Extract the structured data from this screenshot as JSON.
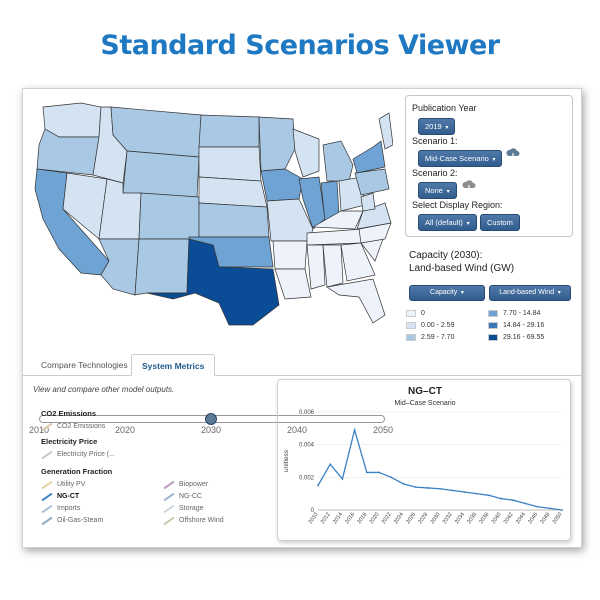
{
  "app": {
    "title": "Standard Scenarios Viewer"
  },
  "timeline": {
    "ticks": [
      "2010",
      "2020",
      "2030",
      "2040",
      "2050"
    ],
    "selected_year": 2030
  },
  "controls": {
    "publication_year_label": "Publication Year",
    "publication_year_value": "2019",
    "scenario1_label": "Scenario 1:",
    "scenario1_value": "Mid-Case Scenario",
    "scenario2_label": "Scenario 2:",
    "scenario2_value": "None",
    "region_label": "Select Display Region:",
    "region_value": "All (default)",
    "custom_label": "Custom"
  },
  "capacity": {
    "title_line1": "Capacity (2030):",
    "title_line2": "Land-based Wind (GW)",
    "metric_button": "Capacity",
    "tech_button": "Land-based Wind"
  },
  "legend": [
    {
      "label": "0",
      "color": "#eef3fb"
    },
    {
      "label": "0.00 - 2.59",
      "color": "#d3e3f2"
    },
    {
      "label": "2.59 - 7.70",
      "color": "#a8c8e4"
    },
    {
      "label": "7.70 - 14.84",
      "color": "#6ea3d3"
    },
    {
      "label": "14.84 - 29.16",
      "color": "#3a78b8"
    },
    {
      "label": "29.16 - 69.55",
      "color": "#0a4d96"
    }
  ],
  "tabs": {
    "compare": "Compare Technologies",
    "system": "System Metrics"
  },
  "description": "View and compare other model outputs.",
  "metrics": {
    "co2_title": "CO2 Emissions",
    "co2_item": "CO2 Emissions",
    "price_title": "Electricity Price",
    "price_item": "Electricity Price (...",
    "gen_title": "Generation Fraction",
    "gen_items": [
      "Utility PV",
      "Biopower",
      "NG-CT",
      "NG-CC",
      "Imports",
      "Storage",
      "Oil-Gas-Steam",
      "Offshore Wind"
    ]
  },
  "chart_data": {
    "type": "line",
    "title": "NG–CT",
    "subtitle": "Mid–Case Scenario",
    "ylabel": "unitless",
    "ylim": [
      0,
      0.006
    ],
    "yticks": [
      "0",
      "0.002",
      "0.004",
      "0.006"
    ],
    "x": [
      2010,
      2012,
      2014,
      2016,
      2018,
      2020,
      2022,
      2024,
      2026,
      2028,
      2030,
      2032,
      2034,
      2036,
      2038,
      2040,
      2042,
      2044,
      2046,
      2048,
      2050
    ],
    "x_tick_labels": [
      "2010",
      "2012",
      "2014",
      "2016",
      "2018",
      "2020",
      "2022",
      "2024",
      "2026",
      "2028",
      "2030",
      "2032",
      "2034",
      "2036",
      "2038",
      "2040",
      "2042",
      "2044",
      "2046",
      "2048",
      "2050"
    ],
    "series": [
      {
        "values": [
          0.0015,
          0.0028,
          0.0019,
          0.0049,
          0.0023,
          0.0023,
          0.002,
          0.0016,
          0.0014,
          0.00135,
          0.0013,
          0.0012,
          0.0011,
          0.001,
          0.0009,
          0.0007,
          0.0006,
          0.0004,
          0.0002,
          0.0001,
          0.0
        ]
      }
    ],
    "line_color": "#3b82c4"
  }
}
